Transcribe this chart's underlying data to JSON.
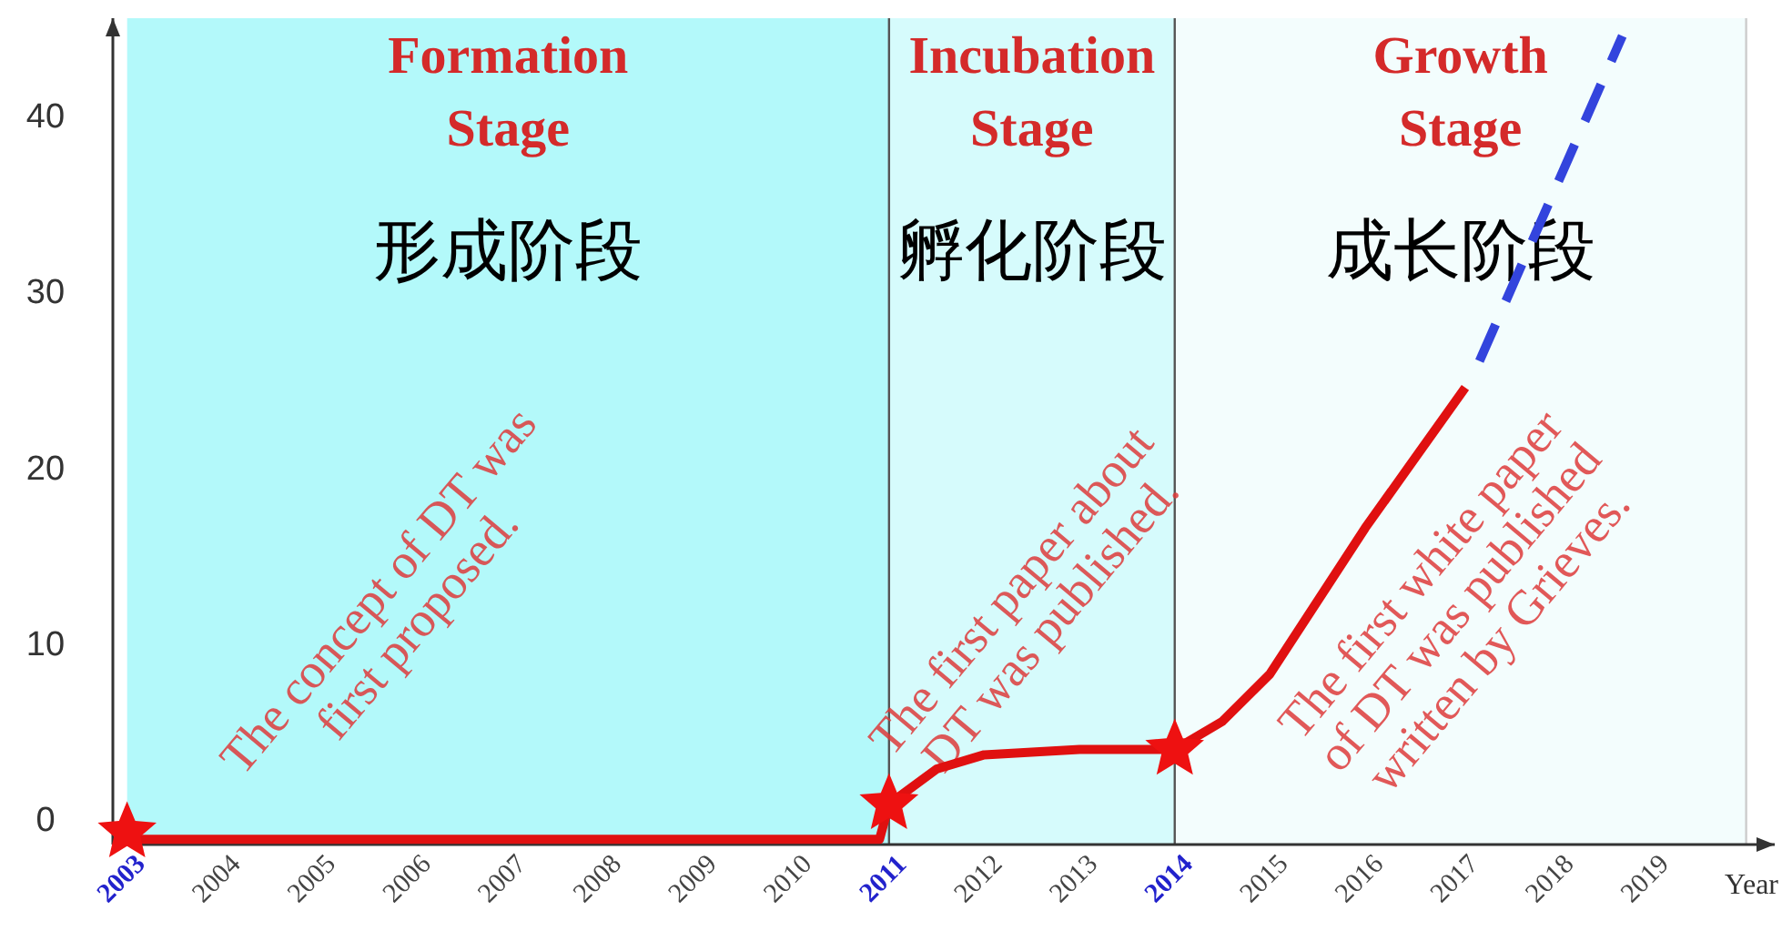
{
  "chart_data": {
    "type": "line",
    "xlabel": "Year",
    "xlim": [
      2002.85,
      2020.3
    ],
    "ylim": [
      -1.5,
      45.5
    ],
    "xticks": [
      2003,
      2004,
      2005,
      2006,
      2007,
      2008,
      2009,
      2010,
      2011,
      2012,
      2013,
      2014,
      2015,
      2016,
      2017,
      2018,
      2019
    ],
    "yticks": [
      0,
      10,
      20,
      30,
      40
    ],
    "series": [
      {
        "color": "#e01010",
        "line_style": "solid",
        "x": [
          2003,
          2010.9,
          2011,
          2011.5,
          2012,
          2013,
          2014,
          2014.5,
          2015,
          2016,
          2017.05
        ],
        "values": [
          -1.2,
          -1.2,
          0.8,
          2.8,
          3.6,
          3.9,
          3.9,
          5.5,
          8.2,
          16.5,
          24.5
        ]
      },
      {
        "color": "#3344dd",
        "line_style": "dashed",
        "x": [
          2017.2,
          2018.7
        ],
        "values": [
          26,
          44.5
        ]
      },
      {
        "type": "scatter",
        "marker": "star",
        "color": "#ee1111",
        "x": [
          2003,
          2011,
          2014
        ],
        "values": [
          -0.8,
          0.8,
          3.9
        ]
      }
    ],
    "bands": [
      {
        "axis": "x",
        "from": 2003,
        "to": 2011,
        "label": "Formation\nStage\n形成阶段",
        "color": "#b3f9fa"
      },
      {
        "axis": "x",
        "from": 2011,
        "to": 2014,
        "label": "Incubation\nStage\n孵化阶段",
        "color": "#d6fbfc"
      },
      {
        "axis": "x",
        "from": 2014,
        "to": 2020,
        "label": "Growth\nStage\n成长阶段",
        "color": "#f3fdfd"
      }
    ],
    "ref_lines": [
      {
        "axis": "x",
        "value": 2011,
        "color": "#555555"
      },
      {
        "axis": "x",
        "value": 2014,
        "color": "#555555"
      },
      {
        "axis": "x",
        "value": 2020,
        "color": "#cccccc"
      }
    ],
    "annotations": [
      "The concept of DT was\nfirst proposed.",
      "The first paper about\nDT was published.",
      "The first white paper\nof DT was published\nwritten by Grieves."
    ]
  }
}
